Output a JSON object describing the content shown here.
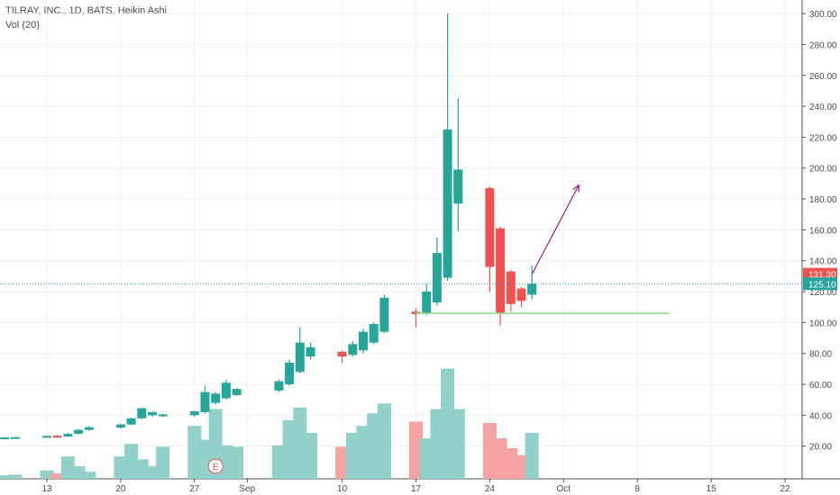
{
  "header": {
    "title": "TILRAY, INC., 1D, BATS, Heikin Ashi",
    "volume_label": "Vol (20)"
  },
  "price_axis": {
    "labels": [
      "300.00",
      "280.00",
      "260.00",
      "240.00",
      "220.00",
      "200.00",
      "180.00",
      "160.00",
      "140.00",
      "120.00",
      "100.00",
      "80.00",
      "60.00",
      "40.00",
      "20.00"
    ],
    "marker_high": "131.30",
    "marker_last": "125.10"
  },
  "time_axis": {
    "labels": [
      "13",
      "20",
      "27",
      "Sep",
      "10",
      "17",
      "24",
      "Oct",
      "8",
      "15",
      "22"
    ]
  },
  "earnings_marker": "E",
  "colors": {
    "up": "#26a69a",
    "down": "#ef5350",
    "vol_up": "#91d1ca",
    "vol_down": "#f5a3a2",
    "support_line": "#8be08b",
    "arrow": "#9c1a8c",
    "price_line": "#3a8fb0",
    "marker_high_bg": "#ef5350",
    "marker_last_bg": "#26a69a"
  },
  "chart_data": {
    "type": "candlestick",
    "title": "TILRAY, INC., 1D, BATS, Heikin Ashi",
    "ylim": [
      0,
      310
    ],
    "candles": [
      {
        "date": "2018-08-08",
        "o": 25.3,
        "h": 25.6,
        "l": 24.9,
        "c": 25.5
      },
      {
        "date": "2018-08-09",
        "o": 25.4,
        "h": 25.8,
        "l": 25.0,
        "c": 25.6
      },
      {
        "date": "2018-08-10",
        "o": 25.5,
        "h": 26.0,
        "l": 25.2,
        "c": 25.8
      },
      {
        "date": "2018-08-13",
        "o": 26.4,
        "h": 26.8,
        "l": 25.9,
        "c": 26.6
      },
      {
        "date": "2018-08-14",
        "o": 26.7,
        "h": 27.0,
        "l": 25.6,
        "c": 26.2
      },
      {
        "date": "2018-08-15",
        "o": 26.2,
        "h": 28.5,
        "l": 26.0,
        "c": 27.9
      },
      {
        "date": "2018-08-16",
        "o": 28.0,
        "h": 31.0,
        "l": 27.5,
        "c": 30.5
      },
      {
        "date": "2018-08-17",
        "o": 30.5,
        "h": 33.0,
        "l": 29.8,
        "c": 32.2
      },
      {
        "date": "2018-08-20",
        "o": 32.0,
        "h": 34.5,
        "l": 31.5,
        "c": 34.0
      },
      {
        "date": "2018-08-21",
        "o": 34.0,
        "h": 38.5,
        "l": 33.5,
        "c": 38.0
      },
      {
        "date": "2018-08-22",
        "o": 38.0,
        "h": 45.0,
        "l": 37.5,
        "c": 44.5
      },
      {
        "date": "2018-08-23",
        "o": 40.0,
        "h": 42.5,
        "l": 39.0,
        "c": 42.0
      },
      {
        "date": "2018-08-24",
        "o": 39.5,
        "h": 41.0,
        "l": 38.8,
        "c": 40.5
      },
      {
        "date": "2018-08-27",
        "o": 40.0,
        "h": 43.0,
        "l": 39.0,
        "c": 42.5
      },
      {
        "date": "2018-08-28",
        "o": 42.0,
        "h": 59.0,
        "l": 41.0,
        "c": 55.0
      },
      {
        "date": "2018-08-29",
        "o": 48.0,
        "h": 55.0,
        "l": 47.0,
        "c": 54.0
      },
      {
        "date": "2018-08-30",
        "o": 51.0,
        "h": 63.0,
        "l": 50.0,
        "c": 61.0
      },
      {
        "date": "2018-08-31",
        "o": 53.0,
        "h": 57.5,
        "l": 52.5,
        "c": 57.0
      },
      {
        "date": "2018-09-04",
        "o": 56.0,
        "h": 63.0,
        "l": 55.0,
        "c": 62.0
      },
      {
        "date": "2018-09-05",
        "o": 60.0,
        "h": 76.0,
        "l": 59.0,
        "c": 74.0
      },
      {
        "date": "2018-09-06",
        "o": 68.0,
        "h": 97.0,
        "l": 67.0,
        "c": 87.0
      },
      {
        "date": "2018-09-07",
        "o": 78.0,
        "h": 87.0,
        "l": 76.0,
        "c": 84.0
      },
      {
        "date": "2018-09-10",
        "o": 81.0,
        "h": 82.0,
        "l": 74.0,
        "c": 78.0
      },
      {
        "date": "2018-09-11",
        "o": 79.0,
        "h": 88.0,
        "l": 78.0,
        "c": 86.0
      },
      {
        "date": "2018-09-12",
        "o": 82.0,
        "h": 96.0,
        "l": 80.0,
        "c": 94.0
      },
      {
        "date": "2018-09-13",
        "o": 87.0,
        "h": 100.0,
        "l": 86.0,
        "c": 99.0
      },
      {
        "date": "2018-09-14",
        "o": 94.0,
        "h": 118.0,
        "l": 93.0,
        "c": 116.0
      },
      {
        "date": "2018-09-17",
        "o": 107.0,
        "h": 109.0,
        "l": 97.0,
        "c": 105.5
      },
      {
        "date": "2018-09-18",
        "o": 106.0,
        "h": 125.0,
        "l": 105.0,
        "c": 120.0
      },
      {
        "date": "2018-09-19",
        "o": 113.0,
        "h": 155.0,
        "l": 111.0,
        "c": 145.0
      },
      {
        "date": "2018-09-20",
        "o": 129.0,
        "h": 300.0,
        "l": 127.0,
        "c": 225.0
      },
      {
        "date": "2018-09-21",
        "o": 177.0,
        "h": 245.0,
        "l": 159.0,
        "c": 199.0
      },
      {
        "date": "2018-09-24",
        "o": 187.0,
        "h": 188.0,
        "l": 120.0,
        "c": 136.0
      },
      {
        "date": "2018-09-25",
        "o": 161.0,
        "h": 162.0,
        "l": 98.0,
        "c": 106.0
      },
      {
        "date": "2018-09-26",
        "o": 133.0,
        "h": 134.0,
        "l": 107.0,
        "c": 112.0
      },
      {
        "date": "2018-09-27",
        "o": 122.0,
        "h": 123.0,
        "l": 110.0,
        "c": 114.0
      },
      {
        "date": "2018-09-28",
        "o": 118.0,
        "h": 137.0,
        "l": 115.0,
        "c": 125.1
      }
    ],
    "volume": [
      {
        "date": "2018-08-08",
        "v": 2.0,
        "dir": "down"
      },
      {
        "date": "2018-08-09",
        "v": 2.5,
        "dir": "up"
      },
      {
        "date": "2018-08-10",
        "v": 3.0,
        "dir": "up"
      },
      {
        "date": "2018-08-13",
        "v": 6.0,
        "dir": "up"
      },
      {
        "date": "2018-08-14",
        "v": 4.0,
        "dir": "down"
      },
      {
        "date": "2018-08-15",
        "v": 16.0,
        "dir": "up"
      },
      {
        "date": "2018-08-16",
        "v": 9.0,
        "dir": "up"
      },
      {
        "date": "2018-08-17",
        "v": 5.0,
        "dir": "up"
      },
      {
        "date": "2018-08-20",
        "v": 16.0,
        "dir": "up"
      },
      {
        "date": "2018-08-21",
        "v": 25.0,
        "dir": "up"
      },
      {
        "date": "2018-08-22",
        "v": 14.0,
        "dir": "up"
      },
      {
        "date": "2018-08-23",
        "v": 9.0,
        "dir": "up"
      },
      {
        "date": "2018-08-24",
        "v": 23.0,
        "dir": "up"
      },
      {
        "date": "2018-08-27",
        "v": 38.0,
        "dir": "up"
      },
      {
        "date": "2018-08-28",
        "v": 28.0,
        "dir": "up"
      },
      {
        "date": "2018-08-29",
        "v": 50.0,
        "dir": "up"
      },
      {
        "date": "2018-08-30",
        "v": 24.0,
        "dir": "up"
      },
      {
        "date": "2018-08-31",
        "v": 23.0,
        "dir": "up"
      },
      {
        "date": "2018-09-04",
        "v": 24.0,
        "dir": "up"
      },
      {
        "date": "2018-09-05",
        "v": 42.0,
        "dir": "up"
      },
      {
        "date": "2018-09-06",
        "v": 51.0,
        "dir": "up"
      },
      {
        "date": "2018-09-07",
        "v": 33.0,
        "dir": "up"
      },
      {
        "date": "2018-09-10",
        "v": 23.0,
        "dir": "down"
      },
      {
        "date": "2018-09-11",
        "v": 33.0,
        "dir": "up"
      },
      {
        "date": "2018-09-12",
        "v": 38.0,
        "dir": "up"
      },
      {
        "date": "2018-09-13",
        "v": 47.0,
        "dir": "up"
      },
      {
        "date": "2018-09-14",
        "v": 54.0,
        "dir": "up"
      },
      {
        "date": "2018-09-17",
        "v": 41.0,
        "dir": "down"
      },
      {
        "date": "2018-09-18",
        "v": 29.0,
        "dir": "up"
      },
      {
        "date": "2018-09-19",
        "v": 50.0,
        "dir": "up"
      },
      {
        "date": "2018-09-20",
        "v": 79.0,
        "dir": "up"
      },
      {
        "date": "2018-09-21",
        "v": 50.0,
        "dir": "up"
      },
      {
        "date": "2018-09-24",
        "v": 40.0,
        "dir": "down"
      },
      {
        "date": "2018-09-25",
        "v": 29.0,
        "dir": "down"
      },
      {
        "date": "2018-09-26",
        "v": 22.0,
        "dir": "down"
      },
      {
        "date": "2018-09-27",
        "v": 17.0,
        "dir": "down"
      },
      {
        "date": "2018-09-28",
        "v": 33.0,
        "dir": "up"
      }
    ],
    "current_price": 125.1,
    "high_marker": 131.3,
    "support_line": {
      "from": "2018-09-17",
      "to": "2018-10-11",
      "price": 106.0
    },
    "arrow": {
      "from": {
        "date": "2018-09-28",
        "price": 131.3
      },
      "to": {
        "date": "2018-10-01",
        "price": 189.0
      }
    }
  }
}
